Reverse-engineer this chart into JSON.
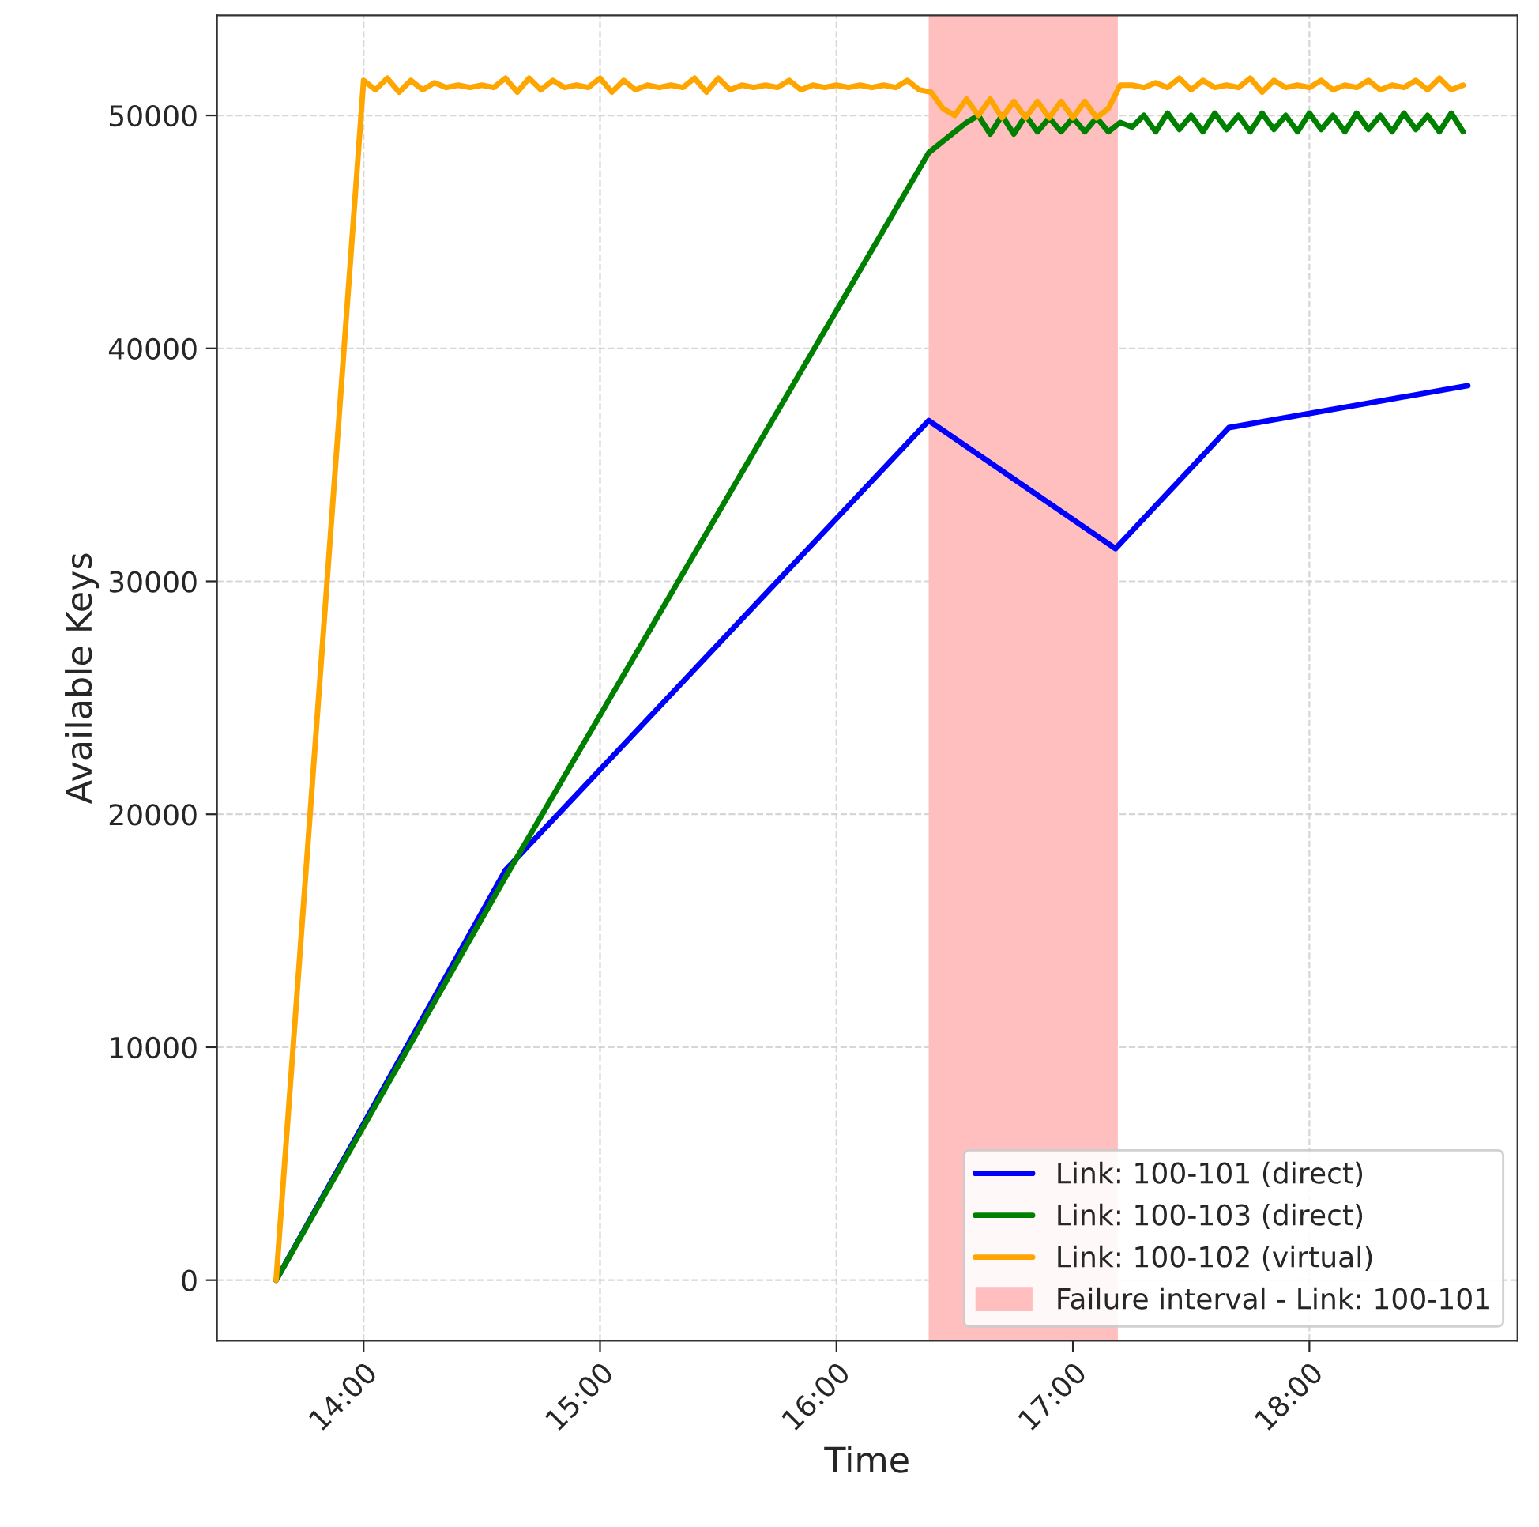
{
  "chart_data": {
    "type": "line",
    "xlabel": "Time",
    "ylabel": "Available Keys",
    "xlim": [
      13.38,
      18.88
    ],
    "ylim": [
      -2600,
      54300
    ],
    "xticks": [
      {
        "value": 14,
        "label": "14:00"
      },
      {
        "value": 15,
        "label": "15:00"
      },
      {
        "value": 16,
        "label": "16:00"
      },
      {
        "value": 17,
        "label": "17:00"
      },
      {
        "value": 18,
        "label": "18:00"
      }
    ],
    "yticks": [
      0,
      10000,
      20000,
      30000,
      40000,
      50000
    ],
    "grid": true,
    "legend": "bottom right",
    "marker": "none",
    "line_style": "solid",
    "bands": [
      {
        "axis": "x",
        "from": 16.39,
        "to": 17.19,
        "label": "Failure interval - Link: 100-101",
        "color": "#ffbfbf"
      }
    ],
    "series": [
      {
        "name": "Link: 100-101 (direct)",
        "color": "#0000ff",
        "x": [
          13.63,
          14.6,
          16.39,
          17.18,
          17.66,
          18.67
        ],
        "values": [
          0,
          17600,
          36900,
          31400,
          36600,
          38400
        ]
      },
      {
        "name": "Link: 100-103 (direct)",
        "color": "#008000",
        "x": [
          13.63,
          14.6,
          16.39,
          16.5,
          16.55,
          16.6,
          16.65,
          16.7,
          16.75,
          16.8,
          16.85,
          16.9,
          16.95,
          17.0,
          17.05,
          17.1,
          17.15,
          17.2,
          17.25,
          17.3,
          17.35,
          17.4,
          17.45,
          17.5,
          17.55,
          17.6,
          17.65,
          17.7,
          17.75,
          17.8,
          17.85,
          17.9,
          17.95,
          18.0,
          18.05,
          18.1,
          18.15,
          18.2,
          18.25,
          18.3,
          18.35,
          18.4,
          18.45,
          18.5,
          18.55,
          18.6,
          18.65
        ],
        "values": [
          0,
          17300,
          48400,
          49300,
          49700,
          50000,
          49200,
          50000,
          49200,
          50000,
          49300,
          49900,
          49300,
          49900,
          49300,
          49900,
          49300,
          49700,
          49500,
          50000,
          49300,
          50100,
          49400,
          50000,
          49300,
          50100,
          49400,
          50000,
          49300,
          50100,
          49400,
          50000,
          49300,
          50100,
          49400,
          50000,
          49300,
          50100,
          49400,
          50000,
          49300,
          50100,
          49400,
          50000,
          49300,
          50100,
          49300
        ]
      },
      {
        "name": "Link: 100-102 (virtual)",
        "color": "#ffa500",
        "x": [
          13.63,
          14.0,
          14.05,
          14.1,
          14.15,
          14.2,
          14.25,
          14.3,
          14.35,
          14.4,
          14.45,
          14.5,
          14.55,
          14.6,
          14.65,
          14.7,
          14.75,
          14.8,
          14.85,
          14.9,
          14.95,
          15.0,
          15.05,
          15.1,
          15.15,
          15.2,
          15.25,
          15.3,
          15.35,
          15.4,
          15.45,
          15.5,
          15.55,
          15.6,
          15.65,
          15.7,
          15.75,
          15.8,
          15.85,
          15.9,
          15.95,
          16.0,
          16.05,
          16.1,
          16.15,
          16.2,
          16.25,
          16.3,
          16.35,
          16.4,
          16.45,
          16.5,
          16.55,
          16.6,
          16.65,
          16.7,
          16.75,
          16.8,
          16.85,
          16.9,
          16.95,
          17.0,
          17.05,
          17.1,
          17.15,
          17.2,
          17.25,
          17.3,
          17.35,
          17.4,
          17.45,
          17.5,
          17.55,
          17.6,
          17.65,
          17.7,
          17.75,
          17.8,
          17.85,
          17.9,
          17.95,
          18.0,
          18.05,
          18.1,
          18.15,
          18.2,
          18.25,
          18.3,
          18.35,
          18.4,
          18.45,
          18.5,
          18.55,
          18.6,
          18.65
        ],
        "values": [
          0,
          51500,
          51100,
          51600,
          51000,
          51500,
          51100,
          51400,
          51200,
          51300,
          51200,
          51300,
          51200,
          51600,
          51000,
          51600,
          51100,
          51500,
          51200,
          51300,
          51200,
          51600,
          51000,
          51500,
          51100,
          51300,
          51200,
          51300,
          51200,
          51600,
          51000,
          51600,
          51100,
          51300,
          51200,
          51300,
          51200,
          51500,
          51100,
          51300,
          51200,
          51300,
          51200,
          51300,
          51200,
          51300,
          51200,
          51500,
          51100,
          51000,
          50300,
          50000,
          50700,
          50000,
          50700,
          49900,
          50600,
          49900,
          50600,
          49900,
          50600,
          49900,
          50600,
          49900,
          50300,
          51300,
          51300,
          51200,
          51400,
          51200,
          51600,
          51100,
          51500,
          51200,
          51300,
          51200,
          51600,
          51000,
          51500,
          51200,
          51300,
          51200,
          51500,
          51100,
          51300,
          51200,
          51500,
          51100,
          51300,
          51200,
          51500,
          51100,
          51600,
          51100,
          51300
        ]
      }
    ]
  }
}
